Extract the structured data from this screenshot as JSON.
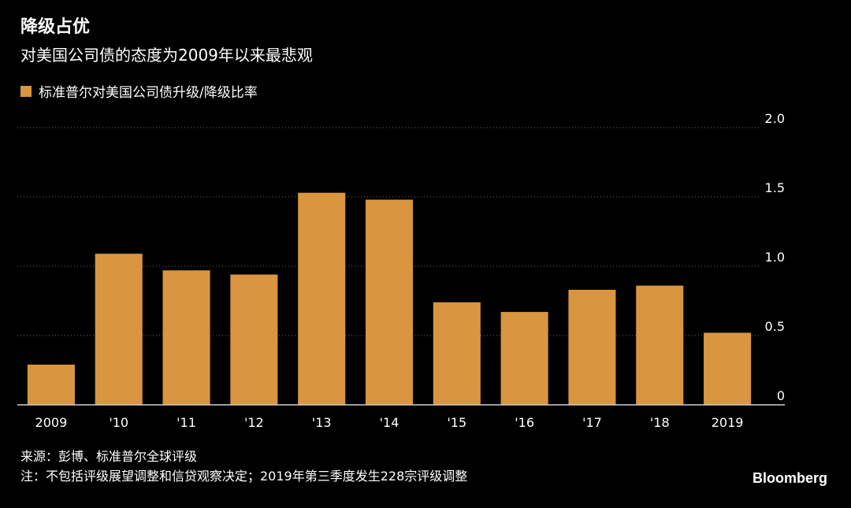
{
  "header": {
    "title": "降级占优",
    "subtitle": "对美国公司债的态度为2009年以来最悲观"
  },
  "legend": {
    "label": "标准普尔对美国公司债升级/降级比率"
  },
  "footer": {
    "source": "来源：彭博、标准普尔全球评级",
    "note": "注：不包括评级展望调整和信贷观察决定；2019年第三季度发生228宗评级调整",
    "brand": "Bloomberg"
  },
  "colors": {
    "bar": "#D9953F",
    "grid": "#6b6b6b",
    "baseline": "#d0d0d0",
    "background": "#000000",
    "text": "#ffffff"
  },
  "chart_data": {
    "type": "bar",
    "categories": [
      "2009",
      "'10",
      "'11",
      "'12",
      "'13",
      "'14",
      "'15",
      "'16",
      "'17",
      "'18",
      "2019"
    ],
    "series": [
      {
        "name": "标准普尔对美国公司债升级/降级比率",
        "values": [
          0.29,
          1.09,
          0.97,
          0.94,
          1.53,
          1.48,
          0.74,
          0.67,
          0.83,
          0.86,
          0.52
        ]
      }
    ],
    "yticks": [
      "0",
      "0.5",
      "1.0",
      "1.5",
      "2.0"
    ],
    "ylim": [
      0,
      2.0
    ],
    "grid": true,
    "y_axis_side": "right",
    "legend_position": "top-left"
  }
}
